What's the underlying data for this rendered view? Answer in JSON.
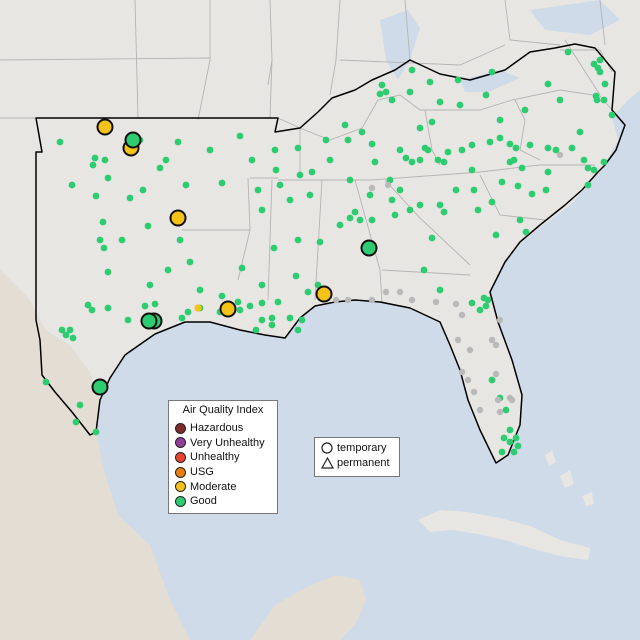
{
  "legend_aqi": {
    "title": "Air Quality Index",
    "items": [
      {
        "label": "Hazardous",
        "color": "#7e2a2a"
      },
      {
        "label": "Very Unhealthy",
        "color": "#8f3f97"
      },
      {
        "label": "Unhealthy",
        "color": "#e8432f"
      },
      {
        "label": "USG",
        "color": "#e87e0f"
      },
      {
        "label": "Moderate",
        "color": "#f5c217"
      },
      {
        "label": "Good",
        "color": "#2ecc71"
      }
    ]
  },
  "legend_type": {
    "items": [
      {
        "label": "temporary",
        "shape": "circle-icon"
      },
      {
        "label": "permanent",
        "shape": "triangle-icon"
      }
    ]
  },
  "colors": {
    "water": "#cfdbe8",
    "land": "#e8e6e3",
    "mexico_land": "#e3ddd3",
    "borders": "#b4b4b4",
    "region_outline": "#000000",
    "no_data": "#b9b9b9"
  }
}
